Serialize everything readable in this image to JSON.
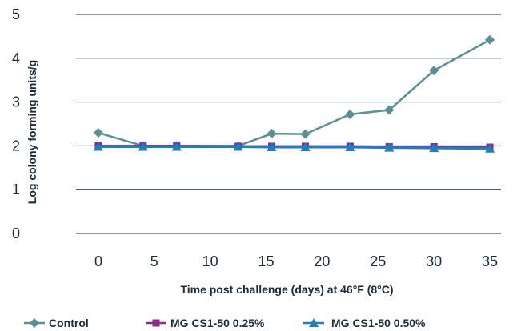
{
  "chart_data": {
    "type": "line",
    "xlabel": "Time post challenge (days) at 46°F (8°C)",
    "ylabel": "Log colony forming units/g",
    "xlim": [
      -2,
      36
    ],
    "ylim": [
      0,
      5
    ],
    "x_ticks": [
      0,
      5,
      10,
      15,
      20,
      25,
      30,
      35
    ],
    "y_ticks": [
      0,
      1,
      2,
      3,
      4,
      5
    ],
    "grid": "horizontal",
    "legend_position": "bottom",
    "series": [
      {
        "name": "Control",
        "color": "#5b8f96",
        "marker": "diamond",
        "points": [
          [
            0,
            2.3
          ],
          [
            4,
            2.0
          ],
          [
            7,
            2.0
          ],
          [
            12.5,
            2.0
          ],
          [
            15.5,
            2.28
          ],
          [
            18.5,
            2.27
          ],
          [
            22.5,
            2.72
          ],
          [
            26,
            2.82
          ],
          [
            30,
            3.72
          ],
          [
            35,
            4.42
          ]
        ]
      },
      {
        "name": "MG CS1-50 0.25%",
        "color": "#8e2a8c",
        "marker": "square",
        "points": [
          [
            0,
            2.0
          ],
          [
            4,
            2.0
          ],
          [
            7,
            2.0
          ],
          [
            12.5,
            1.99
          ],
          [
            15.5,
            1.99
          ],
          [
            18.5,
            1.99
          ],
          [
            22.5,
            1.99
          ],
          [
            26,
            1.98
          ],
          [
            30,
            1.98
          ],
          [
            35,
            1.97
          ]
        ]
      },
      {
        "name": "MG CS1-50 0.50%",
        "color": "#1c7fc0",
        "marker": "triangle",
        "points": [
          [
            0,
            1.98
          ],
          [
            4,
            1.98
          ],
          [
            7,
            1.98
          ],
          [
            12.5,
            1.98
          ],
          [
            15.5,
            1.97
          ],
          [
            18.5,
            1.97
          ],
          [
            22.5,
            1.97
          ],
          [
            26,
            1.96
          ],
          [
            30,
            1.95
          ],
          [
            35,
            1.94
          ]
        ]
      }
    ]
  }
}
